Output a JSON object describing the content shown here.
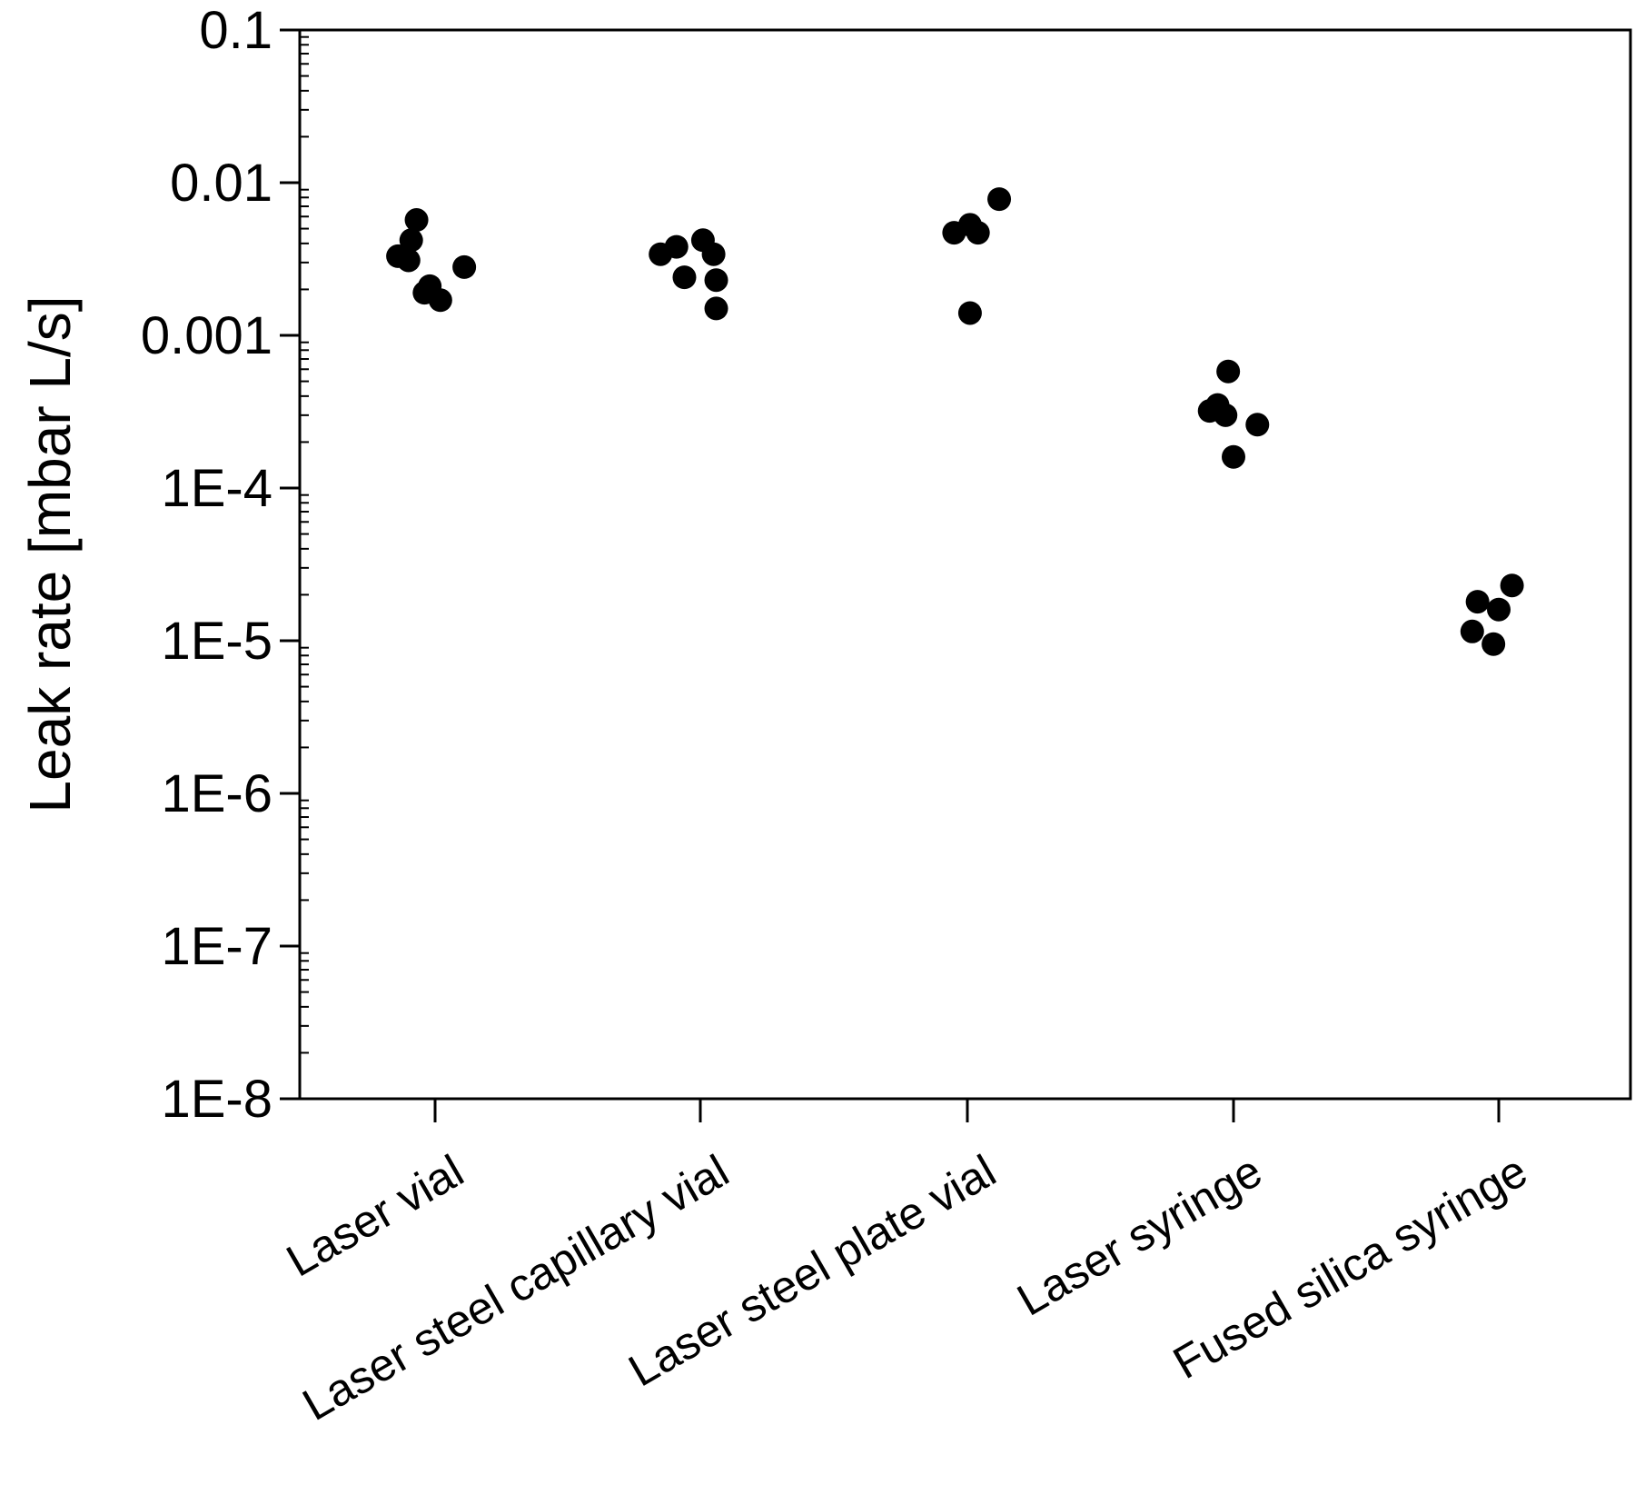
{
  "chart_data": {
    "type": "scatter",
    "title": "",
    "xlabel": "",
    "ylabel": "Leak rate [mbar L/s]",
    "yscale": "log",
    "ylim": [
      1e-08,
      0.1
    ],
    "grid": false,
    "legend": "none",
    "marker_color": "#000000",
    "y_tick_labels": [
      "0.1",
      "0.01",
      "0.001",
      "1E-4",
      "1E-5",
      "1E-6",
      "1E-7",
      "1E-8"
    ],
    "categories": [
      "Laser vial",
      "Laser steel capillary vial",
      "Laser steel plate vial",
      "Laser syringe",
      "Fused silica syringe"
    ],
    "series": [
      {
        "category": "Laser vial",
        "points": [
          {
            "jitter": -0.14,
            "y": 0.0033
          },
          {
            "jitter": -0.1,
            "y": 0.0031
          },
          {
            "jitter": -0.09,
            "y": 0.0042
          },
          {
            "jitter": -0.07,
            "y": 0.0057
          },
          {
            "jitter": -0.04,
            "y": 0.0019
          },
          {
            "jitter": -0.02,
            "y": 0.0021
          },
          {
            "jitter": 0.02,
            "y": 0.0017
          },
          {
            "jitter": 0.11,
            "y": 0.0028
          }
        ]
      },
      {
        "category": "Laser steel capillary vial",
        "points": [
          {
            "jitter": -0.15,
            "y": 0.0034
          },
          {
            "jitter": -0.09,
            "y": 0.0038
          },
          {
            "jitter": -0.06,
            "y": 0.0024
          },
          {
            "jitter": 0.01,
            "y": 0.0042
          },
          {
            "jitter": 0.05,
            "y": 0.0034
          },
          {
            "jitter": 0.06,
            "y": 0.0023
          },
          {
            "jitter": 0.06,
            "y": 0.0015
          }
        ]
      },
      {
        "category": "Laser steel plate vial",
        "points": [
          {
            "jitter": -0.05,
            "y": 0.0047
          },
          {
            "jitter": 0.01,
            "y": 0.0053
          },
          {
            "jitter": 0.04,
            "y": 0.0047
          },
          {
            "jitter": 0.12,
            "y": 0.0078
          },
          {
            "jitter": 0.01,
            "y": 0.0014
          }
        ]
      },
      {
        "category": "Laser syringe",
        "points": [
          {
            "jitter": -0.09,
            "y": 0.00032
          },
          {
            "jitter": -0.06,
            "y": 0.00035
          },
          {
            "jitter": -0.03,
            "y": 0.0003
          },
          {
            "jitter": -0.02,
            "y": 0.00058
          },
          {
            "jitter": 0.0,
            "y": 0.00016
          },
          {
            "jitter": 0.09,
            "y": 0.00026
          }
        ]
      },
      {
        "category": "Fused silica syringe",
        "points": [
          {
            "jitter": -0.1,
            "y": 1.15e-05
          },
          {
            "jitter": -0.08,
            "y": 1.8e-05
          },
          {
            "jitter": -0.02,
            "y": 9.5e-06
          },
          {
            "jitter": 0.0,
            "y": 1.6e-05
          },
          {
            "jitter": 0.05,
            "y": 2.3e-05
          }
        ]
      }
    ]
  }
}
